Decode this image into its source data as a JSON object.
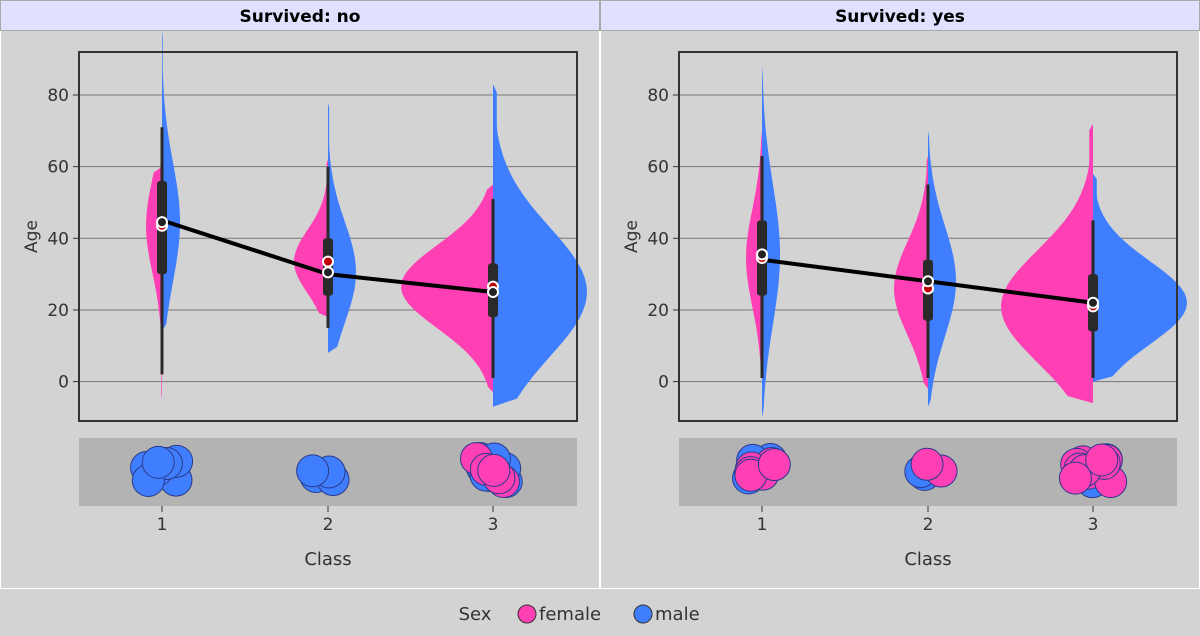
{
  "chart_data": {
    "type": "violin",
    "facet_variable": "Survived",
    "panels": [
      {
        "title": "Survived: no",
        "xlabel": "Class",
        "ylabel": "Age",
        "categories": [
          "1",
          "2",
          "3"
        ],
        "ylim": [
          -11,
          92
        ],
        "yticks": [
          0,
          20,
          40,
          60,
          80
        ],
        "violins": [
          {
            "category": "1",
            "female": {
              "range": [
                -5,
                60
              ],
              "mean": 43.5,
              "median": 44
            },
            "male": {
              "range": [
                14,
                98
              ],
              "mean": 44.5,
              "median": 45,
              "q1": 30,
              "q3": 56,
              "whisker": [
                2,
                71
              ]
            }
          },
          {
            "category": "2",
            "female": {
              "range": [
                18,
                62
              ],
              "mean": 33.5
            },
            "male": {
              "range": [
                8,
                78
              ],
              "mean": 30.5,
              "median": 30,
              "q1": 24,
              "q3": 40,
              "whisker": [
                15,
                60
              ]
            }
          },
          {
            "category": "3",
            "female": {
              "range": [
                -3,
                55
              ],
              "mean": 26.5
            },
            "male": {
              "range": [
                -7,
                83
              ],
              "mean": 25,
              "median": 25,
              "q1": 18,
              "q3": 33,
              "whisker": [
                1,
                51
              ]
            }
          }
        ],
        "mean_line": [
          {
            "x": "1",
            "y": 45
          },
          {
            "x": "2",
            "y": 30
          },
          {
            "x": "3",
            "y": 25
          }
        ],
        "missing_strip": [
          {
            "category": "1",
            "female": 0,
            "male": 7
          },
          {
            "category": "2",
            "female": 0,
            "male": 4
          },
          {
            "category": "3",
            "female": 5,
            "male": 12
          }
        ]
      },
      {
        "title": "Survived: yes",
        "xlabel": "Class",
        "ylabel": "Age",
        "categories": [
          "1",
          "2",
          "3"
        ],
        "ylim": [
          -11,
          92
        ],
        "yticks": [
          0,
          20,
          40,
          60,
          80
        ],
        "violins": [
          {
            "category": "1",
            "female": {
              "range": [
                2,
                70
              ],
              "mean": 34.5,
              "median": 35,
              "q1": 24,
              "q3": 45,
              "whisker": [
                1,
                63
              ]
            },
            "male": {
              "range": [
                -10,
                88
              ],
              "mean": 35.5
            }
          },
          {
            "category": "2",
            "female": {
              "range": [
                -2,
                63
              ],
              "mean": 26,
              "median": 28,
              "q1": 17,
              "q3": 34,
              "whisker": [
                1,
                55
              ]
            },
            "male": {
              "range": [
                -7,
                70
              ],
              "mean": 28
            }
          },
          {
            "category": "3",
            "female": {
              "range": [
                -6,
                72
              ],
              "mean": 21,
              "median": 22,
              "q1": 14,
              "q3": 30,
              "whisker": [
                1,
                45
              ]
            },
            "male": {
              "range": [
                0,
                58
              ],
              "mean": 22
            }
          }
        ],
        "mean_line": [
          {
            "x": "1",
            "y": 34
          },
          {
            "x": "2",
            "y": 28
          },
          {
            "x": "3",
            "y": 22
          }
        ],
        "missing_strip": [
          {
            "category": "1",
            "female": 6,
            "male": 3
          },
          {
            "category": "2",
            "female": 2,
            "male": 2
          },
          {
            "category": "3",
            "female": 10,
            "male": 5
          }
        ]
      }
    ],
    "legend": {
      "title": "Sex",
      "placement": "bottom",
      "entries": [
        {
          "label": "female",
          "color": "#ff3fb4"
        },
        {
          "label": "male",
          "color": "#3f7fff"
        }
      ]
    },
    "colors": {
      "female": "#ff3fb4",
      "male": "#3f7fff",
      "panel_bg": "#d3d3d3",
      "header_bg": "#e0e0ff",
      "strip_bg": "#b3b3b3",
      "box": "#2a2a2a",
      "mean_line": "#000000"
    },
    "grid": true
  }
}
